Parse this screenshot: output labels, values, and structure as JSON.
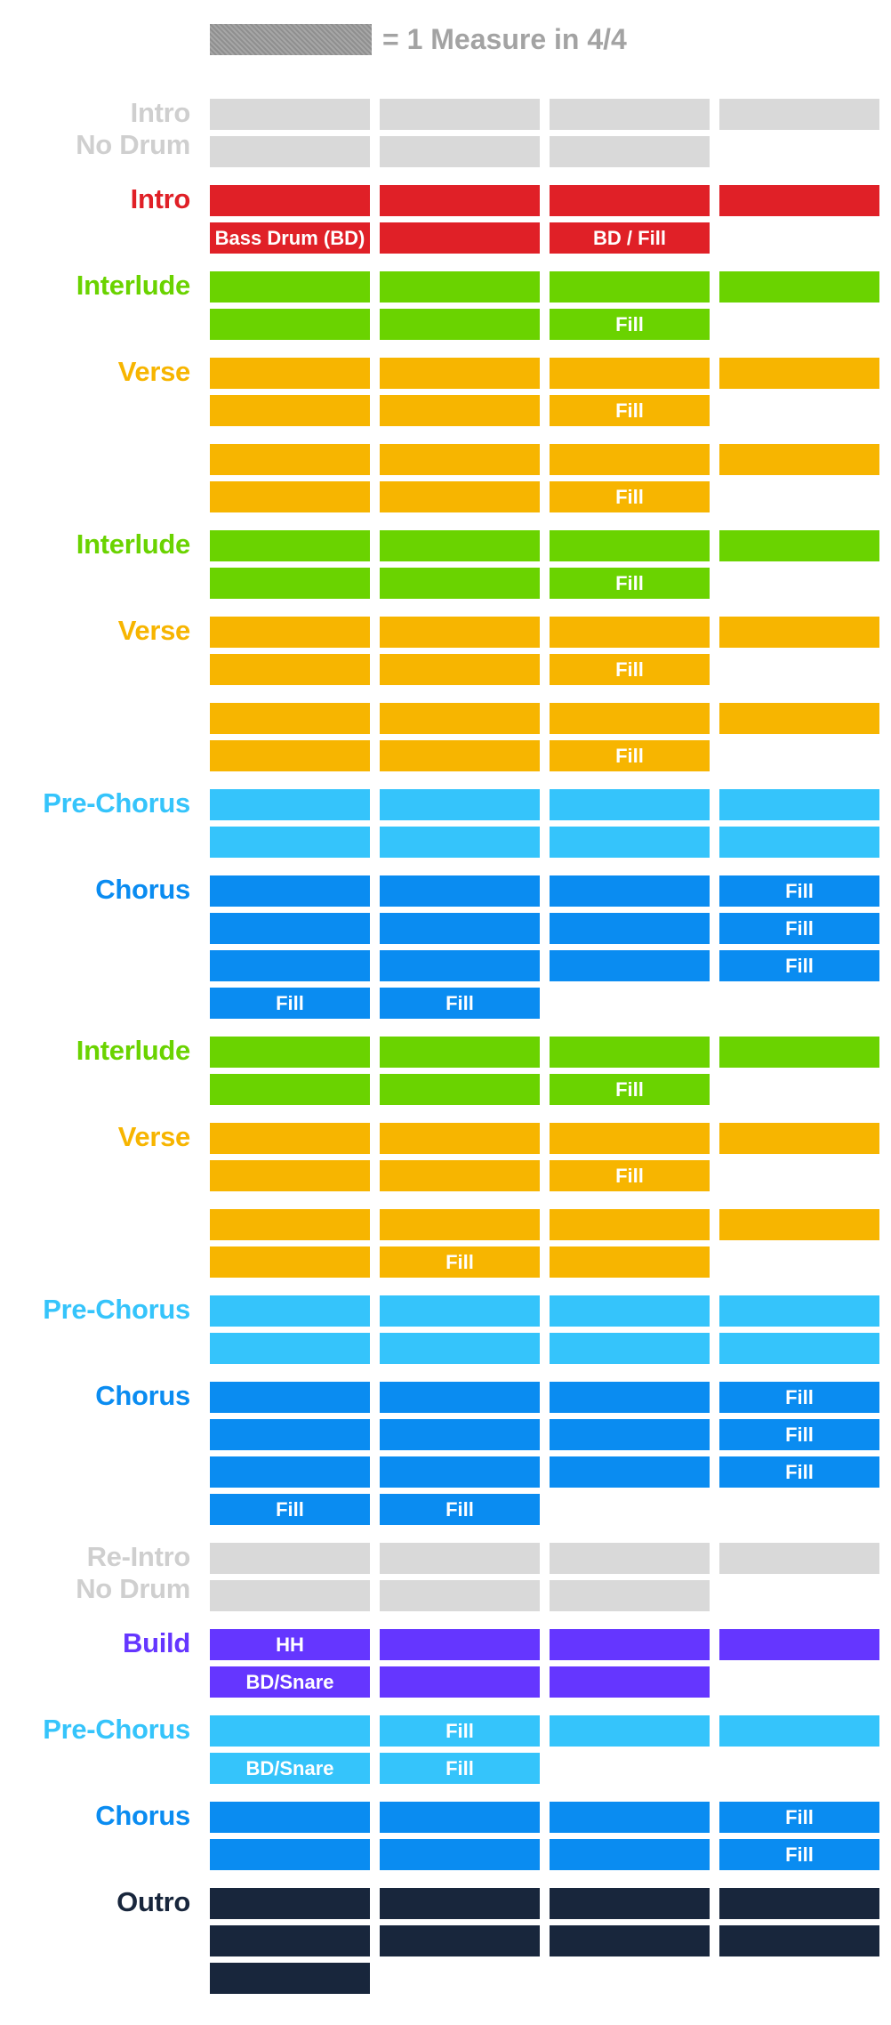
{
  "legend": {
    "text": "= 1 Measure in 4/4"
  },
  "colors": {
    "nodrum": "#d9d9d9",
    "intro": "#e02027",
    "interlude": "#6ad300",
    "verse": "#f7b500",
    "prechorus": "#35c4fb",
    "chorus": "#0a8cf1",
    "build": "#6536ff",
    "outro": "#18263c"
  },
  "sections": [
    {
      "label": [
        "Intro",
        "No Drum"
      ],
      "color": "nodrum",
      "rows": [
        [
          null,
          null,
          null,
          null
        ],
        [
          null,
          null,
          null
        ]
      ]
    },
    {
      "label": [
        "Intro"
      ],
      "color": "intro",
      "rows": [
        [
          null,
          null,
          null,
          null
        ],
        [
          "Bass Drum (BD)",
          null,
          "BD / Fill"
        ]
      ]
    },
    {
      "label": [
        "Interlude"
      ],
      "color": "interlude",
      "rows": [
        [
          null,
          null,
          null,
          null
        ],
        [
          null,
          null,
          "Fill"
        ]
      ]
    },
    {
      "label": [
        "Verse"
      ],
      "color": "verse",
      "rows": [
        [
          null,
          null,
          null,
          null
        ],
        [
          null,
          null,
          "Fill"
        ]
      ]
    },
    {
      "label": [],
      "color": "verse",
      "rows": [
        [
          null,
          null,
          null,
          null
        ],
        [
          null,
          null,
          "Fill"
        ]
      ]
    },
    {
      "label": [
        "Interlude"
      ],
      "color": "interlude",
      "rows": [
        [
          null,
          null,
          null,
          null
        ],
        [
          null,
          null,
          "Fill"
        ]
      ]
    },
    {
      "label": [
        "Verse"
      ],
      "color": "verse",
      "rows": [
        [
          null,
          null,
          null,
          null
        ],
        [
          null,
          null,
          "Fill"
        ]
      ]
    },
    {
      "label": [],
      "color": "verse",
      "rows": [
        [
          null,
          null,
          null,
          null
        ],
        [
          null,
          null,
          "Fill"
        ]
      ]
    },
    {
      "label": [
        "Pre-Chorus"
      ],
      "color": "prechorus",
      "rows": [
        [
          null,
          null,
          null,
          null
        ],
        [
          null,
          null,
          null,
          null
        ]
      ]
    },
    {
      "label": [
        "Chorus"
      ],
      "color": "chorus",
      "rows": [
        [
          null,
          null,
          null,
          "Fill"
        ],
        [
          null,
          null,
          null,
          "Fill"
        ],
        [
          null,
          null,
          null,
          "Fill"
        ],
        [
          "Fill",
          "Fill"
        ]
      ]
    },
    {
      "label": [
        "Interlude"
      ],
      "color": "interlude",
      "rows": [
        [
          null,
          null,
          null,
          null
        ],
        [
          null,
          null,
          "Fill"
        ]
      ]
    },
    {
      "label": [
        "Verse"
      ],
      "color": "verse",
      "rows": [
        [
          null,
          null,
          null,
          null
        ],
        [
          null,
          null,
          "Fill"
        ]
      ]
    },
    {
      "label": [],
      "color": "verse",
      "rows": [
        [
          null,
          null,
          null,
          null
        ],
        [
          null,
          "Fill",
          null
        ]
      ]
    },
    {
      "label": [
        "Pre-Chorus"
      ],
      "color": "prechorus",
      "rows": [
        [
          null,
          null,
          null,
          null
        ],
        [
          null,
          null,
          null,
          null
        ]
      ]
    },
    {
      "label": [
        "Chorus"
      ],
      "color": "chorus",
      "rows": [
        [
          null,
          null,
          null,
          "Fill"
        ],
        [
          null,
          null,
          null,
          "Fill"
        ],
        [
          null,
          null,
          null,
          "Fill"
        ],
        [
          "Fill",
          "Fill"
        ]
      ]
    },
    {
      "label": [
        "Re-Intro",
        "No Drum"
      ],
      "color": "nodrum",
      "rows": [
        [
          null,
          null,
          null,
          null
        ],
        [
          null,
          null,
          null
        ]
      ]
    },
    {
      "label": [
        "Build"
      ],
      "color": "build",
      "rows": [
        [
          "HH",
          null,
          null,
          null
        ],
        [
          "BD/Snare",
          null,
          null
        ]
      ]
    },
    {
      "label": [
        "Pre-Chorus"
      ],
      "color": "prechorus",
      "rows": [
        [
          null,
          "Fill",
          null,
          null
        ],
        [
          "BD/Snare",
          "Fill"
        ]
      ]
    },
    {
      "label": [
        "Chorus"
      ],
      "color": "chorus",
      "rows": [
        [
          null,
          null,
          null,
          "Fill"
        ],
        [
          null,
          null,
          null,
          "Fill"
        ]
      ]
    },
    {
      "label": [
        "Outro"
      ],
      "color": "outro",
      "rows": [
        [
          null,
          null,
          null,
          null
        ],
        [
          null,
          null,
          null,
          null
        ],
        [
          null
        ]
      ]
    }
  ]
}
